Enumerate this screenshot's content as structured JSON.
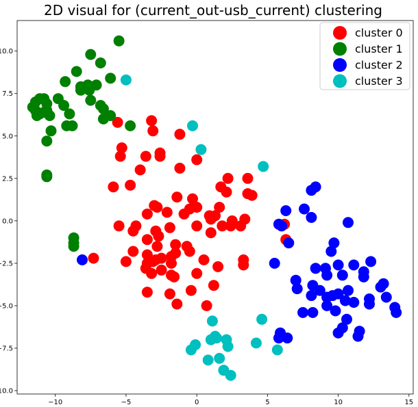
{
  "chart_data": {
    "type": "scatter",
    "title": "2D visual for (current_out-usb_current) clustering",
    "xlabel": "",
    "ylabel": "",
    "xlim": [
      -12.7,
      15.3
    ],
    "ylim": [
      -10.2,
      11.8
    ],
    "xticks": [
      -10,
      -5,
      0,
      5,
      10,
      15
    ],
    "yticks": [
      -10.0,
      -7.5,
      -5.0,
      -2.5,
      0.0,
      2.5,
      5.0,
      7.5,
      10.0
    ],
    "ytick_labels": [
      "−10.0",
      "−7.5",
      "−5.0",
      "−2.5",
      "0.0",
      "2.5",
      "5.0",
      "7.5",
      "10.0"
    ],
    "xtick_labels": [
      "−10",
      "−5",
      "0",
      "5",
      "10",
      "15"
    ],
    "grid": false,
    "legend_position": "top-right",
    "series": [
      {
        "name": "cluster 0",
        "color": "#ff0000",
        "points": [
          [
            -5.6,
            5.8
          ],
          [
            -3.2,
            5.9
          ],
          [
            -3.1,
            5.3
          ],
          [
            -1.2,
            5.1
          ],
          [
            -5.3,
            4.3
          ],
          [
            -5.4,
            3.8
          ],
          [
            -3.6,
            3.8
          ],
          [
            -2.6,
            4.0
          ],
          [
            -2.6,
            3.8
          ],
          [
            -1.2,
            3.1
          ],
          [
            0.0,
            3.6
          ],
          [
            -4.0,
            3.0
          ],
          [
            -4.7,
            2.1
          ],
          [
            -5.9,
            2.0
          ],
          [
            1.7,
            2.0
          ],
          [
            2.2,
            2.5
          ],
          [
            3.6,
            2.5
          ],
          [
            2.1,
            1.7
          ],
          [
            3.6,
            1.6
          ],
          [
            3.9,
            1.5
          ],
          [
            -1.4,
            1.4
          ],
          [
            -0.3,
            1.3
          ],
          [
            -3.0,
            0.9
          ],
          [
            -2.8,
            0.8
          ],
          [
            -2.1,
            0.5
          ],
          [
            -3.5,
            0.4
          ],
          [
            -0.9,
            0.4
          ],
          [
            -0.5,
            0.7
          ],
          [
            0.0,
            0.8
          ],
          [
            1.6,
            0.8
          ],
          [
            0.9,
            0.3
          ],
          [
            1.3,
            0.3
          ],
          [
            1.0,
            0.1
          ],
          [
            2.5,
            0.0
          ],
          [
            3.4,
            0.1
          ],
          [
            -1.9,
            -0.4
          ],
          [
            -2.9,
            -0.6
          ],
          [
            -4.3,
            -0.3
          ],
          [
            -4.5,
            -0.6
          ],
          [
            -5.5,
            -0.3
          ],
          [
            0.0,
            -0.3
          ],
          [
            1.0,
            -0.7
          ],
          [
            1.8,
            -0.3
          ],
          [
            2.4,
            -0.3
          ],
          [
            3.1,
            -0.3
          ],
          [
            -2.7,
            -0.9
          ],
          [
            -3.5,
            -1.1
          ],
          [
            -1.5,
            -1.4
          ],
          [
            -0.7,
            -1.5
          ],
          [
            -0.5,
            -1.8
          ],
          [
            -1.5,
            -1.9
          ],
          [
            -2.8,
            -1.5
          ],
          [
            -3.5,
            -2.0
          ],
          [
            -4.5,
            -1.8
          ],
          [
            -2.5,
            -2.2
          ],
          [
            -1.8,
            -2.1
          ],
          [
            -1.8,
            -2.5
          ],
          [
            -2.9,
            -2.3
          ],
          [
            -3.1,
            -2.4
          ],
          [
            -3.5,
            -2.5
          ],
          [
            -3.6,
            -2.8
          ],
          [
            -2.5,
            -2.9
          ],
          [
            -5.0,
            -2.4
          ],
          [
            -7.3,
            -2.2
          ],
          [
            0.5,
            -2.3
          ],
          [
            1.5,
            -2.7
          ],
          [
            3.3,
            -2.3
          ],
          [
            3.3,
            -2.6
          ],
          [
            -3.2,
            -3.1
          ],
          [
            -1.8,
            -3.2
          ],
          [
            -1.6,
            -3.3
          ],
          [
            0.0,
            -3.1
          ],
          [
            1.2,
            -3.8
          ],
          [
            -3.5,
            -4.2
          ],
          [
            -0.4,
            -4.1
          ],
          [
            -1.9,
            -4.3
          ],
          [
            -1.4,
            -4.9
          ],
          [
            0.7,
            -5.0
          ],
          [
            6.2,
            -0.2
          ],
          [
            6.3,
            -1.1
          ]
        ]
      },
      {
        "name": "cluster 1",
        "color": "#008000",
        "points": [
          [
            -5.5,
            10.6
          ],
          [
            -7.5,
            9.8
          ],
          [
            -6.8,
            9.3
          ],
          [
            -8.5,
            8.8
          ],
          [
            -6.1,
            8.4
          ],
          [
            -9.3,
            8.2
          ],
          [
            -8.2,
            7.9
          ],
          [
            -7.7,
            8.0
          ],
          [
            -7.1,
            8.0
          ],
          [
            -8.2,
            7.7
          ],
          [
            -7.6,
            7.7
          ],
          [
            -9.8,
            7.2
          ],
          [
            -7.5,
            7.1
          ],
          [
            -9.4,
            6.8
          ],
          [
            -6.8,
            6.8
          ],
          [
            -6.6,
            6.6
          ],
          [
            -11.4,
            7.0
          ],
          [
            -11.1,
            7.2
          ],
          [
            -10.8,
            7.2
          ],
          [
            -11.6,
            6.7
          ],
          [
            -10.6,
            6.9
          ],
          [
            -10.6,
            6.5
          ],
          [
            -11.4,
            6.5
          ],
          [
            -11.1,
            6.3
          ],
          [
            -10.8,
            6.4
          ],
          [
            -11.3,
            6.2
          ],
          [
            -10.4,
            6.2
          ],
          [
            -9.0,
            6.3
          ],
          [
            -6.1,
            6.2
          ],
          [
            -6.6,
            6.0
          ],
          [
            -9.2,
            5.6
          ],
          [
            -8.8,
            5.6
          ],
          [
            -4.7,
            5.6
          ],
          [
            -10.3,
            5.3
          ],
          [
            -10.6,
            4.7
          ],
          [
            -10.6,
            2.7
          ],
          [
            -10.6,
            2.6
          ],
          [
            -8.7,
            -1.0
          ],
          [
            -8.7,
            -1.3
          ],
          [
            -8.7,
            -1.5
          ]
        ]
      },
      {
        "name": "cluster 2",
        "color": "#0000ff",
        "points": [
          [
            8.1,
            1.8
          ],
          [
            8.4,
            2.0
          ],
          [
            6.3,
            0.6
          ],
          [
            7.6,
            0.7
          ],
          [
            8.1,
            0.2
          ],
          [
            10.7,
            -0.1
          ],
          [
            5.8,
            -0.2
          ],
          [
            6.0,
            -0.3
          ],
          [
            6.5,
            -1.3
          ],
          [
            9.7,
            -1.3
          ],
          [
            9.5,
            -1.8
          ],
          [
            5.5,
            -2.5
          ],
          [
            10.0,
            -2.6
          ],
          [
            11.1,
            -2.6
          ],
          [
            12.3,
            -2.4
          ],
          [
            8.4,
            -2.8
          ],
          [
            9.1,
            -2.8
          ],
          [
            9.2,
            -3.2
          ],
          [
            10.3,
            -3.2
          ],
          [
            11.8,
            -3.0
          ],
          [
            11.8,
            -3.3
          ],
          [
            13.2,
            -3.7
          ],
          [
            13.0,
            -3.9
          ],
          [
            7.0,
            -3.5
          ],
          [
            7.1,
            -4.0
          ],
          [
            8.2,
            -3.8
          ],
          [
            8.7,
            -4.1
          ],
          [
            8.1,
            -4.4
          ],
          [
            9.2,
            -4.5
          ],
          [
            9.6,
            -4.4
          ],
          [
            10.0,
            -4.3
          ],
          [
            10.7,
            -4.1
          ],
          [
            10.5,
            -4.7
          ],
          [
            11.1,
            -4.8
          ],
          [
            12.2,
            -4.9
          ],
          [
            12.2,
            -4.6
          ],
          [
            13.4,
            -4.5
          ],
          [
            14.0,
            -5.1
          ],
          [
            14.1,
            -5.4
          ],
          [
            7.5,
            -5.4
          ],
          [
            8.2,
            -5.4
          ],
          [
            9.2,
            -5.0
          ],
          [
            9.8,
            -5.3
          ],
          [
            10.6,
            -5.8
          ],
          [
            10.3,
            -6.3
          ],
          [
            10.0,
            -6.6
          ],
          [
            11.5,
            -6.5
          ],
          [
            11.4,
            -6.8
          ],
          [
            5.9,
            -6.6
          ],
          [
            5.8,
            -6.9
          ],
          [
            6.4,
            -6.9
          ],
          [
            -8.1,
            -2.3
          ]
        ]
      },
      {
        "name": "cluster 3",
        "color": "#00bfbf",
        "points": [
          [
            -5.0,
            8.3
          ],
          [
            -0.3,
            5.6
          ],
          [
            0.3,
            4.2
          ],
          [
            4.7,
            3.2
          ],
          [
            1.1,
            -5.9
          ],
          [
            4.6,
            -5.8
          ],
          [
            1.3,
            -6.8
          ],
          [
            1.4,
            -6.9
          ],
          [
            1.0,
            -7.0
          ],
          [
            2.1,
            -7.0
          ],
          [
            4.2,
            -7.2
          ],
          [
            -0.1,
            -7.3
          ],
          [
            2.2,
            -7.4
          ],
          [
            -0.4,
            -7.6
          ],
          [
            5.7,
            -7.6
          ],
          [
            1.6,
            -8.1
          ],
          [
            0.8,
            -8.2
          ],
          [
            1.9,
            -8.8
          ],
          [
            2.4,
            -9.1
          ]
        ]
      }
    ]
  }
}
